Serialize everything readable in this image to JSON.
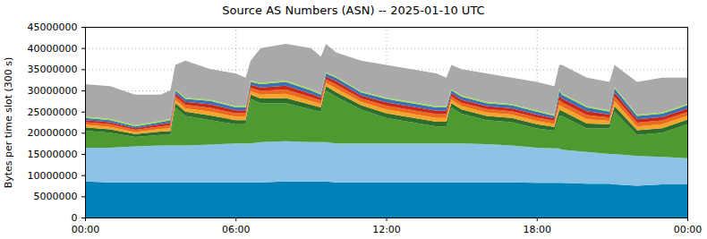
{
  "chart_data": {
    "type": "area",
    "title": "Source AS Numbers (ASN) -- 2025-01-10 UTC",
    "y_label": "Bytes per time slot (300 s)",
    "stacked": true,
    "grid": true,
    "x": [
      0,
      1,
      2,
      3,
      3.4,
      3.6,
      4,
      5,
      6,
      6.4,
      6.6,
      7,
      8,
      9,
      9.4,
      9.6,
      10,
      11,
      12,
      13,
      14,
      14.4,
      14.6,
      15,
      16,
      17,
      18,
      18.7,
      18.9,
      19,
      20,
      20.9,
      21.1,
      22,
      23,
      24
    ],
    "xlim": [
      0,
      24
    ],
    "xticks": [
      {
        "value": 0,
        "label": "00:00"
      },
      {
        "value": 6,
        "label": "06:00"
      },
      {
        "value": 12,
        "label": "12:00"
      },
      {
        "value": 18,
        "label": "18:00"
      },
      {
        "value": 24,
        "label": "00:00"
      }
    ],
    "ylim": [
      0,
      45000000
    ],
    "yticks": [
      0,
      5000000,
      10000000,
      15000000,
      20000000,
      25000000,
      30000000,
      35000000,
      40000000,
      45000000
    ],
    "series": [
      {
        "color": "#0081b7",
        "values": [
          8500000,
          8300000,
          8300000,
          8300000,
          8300000,
          8300000,
          8300000,
          8300000,
          8300000,
          8300000,
          8300000,
          8300000,
          8500000,
          8500000,
          8500000,
          8500000,
          8300000,
          8300000,
          8300000,
          8300000,
          8300000,
          8300000,
          8300000,
          8300000,
          8300000,
          8300000,
          8200000,
          8200000,
          8200000,
          8200000,
          8000000,
          8000000,
          7800000,
          7500000,
          7800000,
          7800000
        ]
      },
      {
        "color": "#8dc3e5",
        "values": [
          8000000,
          8200000,
          8500000,
          8700000,
          8700000,
          8700000,
          8700000,
          8900000,
          9200000,
          9200000,
          9200000,
          9500000,
          9500000,
          9300000,
          9300000,
          9300000,
          9200000,
          9200000,
          9200000,
          9200000,
          9200000,
          9200000,
          9200000,
          9200000,
          9000000,
          8700000,
          8300000,
          8100000,
          8100000,
          7800000,
          7500000,
          7000000,
          7200000,
          7000000,
          6500000,
          6200000
        ]
      },
      {
        "color": "#4d9b30",
        "values": [
          4000000,
          3500000,
          2200000,
          2500000,
          2500000,
          9000000,
          7000000,
          5800000,
          4500000,
          4500000,
          10500000,
          9200000,
          9000000,
          7700000,
          7200000,
          12200000,
          11000000,
          8000000,
          6000000,
          5000000,
          4000000,
          4000000,
          8500000,
          7000000,
          5700000,
          5500000,
          4500000,
          4200000,
          7700000,
          8000000,
          5500000,
          6000000,
          10000000,
          5000000,
          5700000,
          8000000
        ]
      },
      {
        "color": "#2e6e2c",
        "values": [
          800000,
          800000,
          700000,
          800000,
          900000,
          1000000,
          1000000,
          1100000,
          1000000,
          1000000,
          1000000,
          1100000,
          1200000,
          1100000,
          1000000,
          1000000,
          1100000,
          1000000,
          1100000,
          1100000,
          1100000,
          1100000,
          1000000,
          1000000,
          1000000,
          1000000,
          1000000,
          900000,
          1400000,
          1200000,
          1200000,
          1000000,
          1300000,
          1100000,
          1100000,
          1100000
        ]
      },
      {
        "color": "#f4a62a",
        "values": [
          600000,
          600000,
          500000,
          600000,
          700000,
          800000,
          800000,
          900000,
          800000,
          800000,
          800000,
          900000,
          1000000,
          900000,
          800000,
          800000,
          900000,
          800000,
          900000,
          900000,
          900000,
          900000,
          800000,
          800000,
          800000,
          800000,
          800000,
          700000,
          1200000,
          1000000,
          1000000,
          800000,
          1100000,
          900000,
          900000,
          900000
        ]
      },
      {
        "color": "#ec6a1c",
        "values": [
          600000,
          600000,
          500000,
          600000,
          700000,
          800000,
          800000,
          900000,
          800000,
          800000,
          800000,
          900000,
          1000000,
          900000,
          800000,
          800000,
          900000,
          800000,
          900000,
          900000,
          900000,
          900000,
          800000,
          800000,
          800000,
          800000,
          800000,
          700000,
          1200000,
          1000000,
          1000000,
          800000,
          1100000,
          900000,
          900000,
          900000
        ]
      },
      {
        "color": "#c8281c",
        "values": [
          500000,
          500000,
          400000,
          500000,
          600000,
          700000,
          700000,
          800000,
          700000,
          700000,
          700000,
          800000,
          900000,
          800000,
          700000,
          700000,
          800000,
          700000,
          800000,
          800000,
          800000,
          800000,
          700000,
          700000,
          700000,
          700000,
          700000,
          600000,
          1100000,
          900000,
          900000,
          700000,
          1000000,
          800000,
          800000,
          800000
        ]
      },
      {
        "color": "#3e6fb2",
        "values": [
          500000,
          500000,
          400000,
          500000,
          600000,
          700000,
          700000,
          800000,
          700000,
          700000,
          700000,
          800000,
          900000,
          800000,
          700000,
          700000,
          800000,
          700000,
          800000,
          800000,
          800000,
          800000,
          700000,
          700000,
          700000,
          700000,
          700000,
          600000,
          1100000,
          900000,
          900000,
          700000,
          1000000,
          800000,
          800000,
          800000
        ]
      },
      {
        "color": "#9ce04e",
        "values": [
          300000,
          300000,
          300000,
          300000,
          300000,
          300000,
          300000,
          300000,
          300000,
          300000,
          300000,
          300000,
          300000,
          300000,
          300000,
          300000,
          300000,
          300000,
          300000,
          300000,
          300000,
          300000,
          300000,
          300000,
          300000,
          300000,
          300000,
          300000,
          300000,
          300000,
          300000,
          300000,
          300000,
          300000,
          300000,
          300000
        ]
      },
      {
        "color": "#a9a9a9",
        "values": [
          7700000,
          7700000,
          7200000,
          6200000,
          6700000,
          5700000,
          8700000,
          7200000,
          7700000,
          6700000,
          4700000,
          8200000,
          8700000,
          9700000,
          8700000,
          6700000,
          5700000,
          7200000,
          7700000,
          7700000,
          7700000,
          6700000,
          5700000,
          6200000,
          6700000,
          6200000,
          6700000,
          6700000,
          5700000,
          6700000,
          6700000,
          6700000,
          5200000,
          7700000,
          8200000,
          6200000
        ]
      }
    ]
  }
}
